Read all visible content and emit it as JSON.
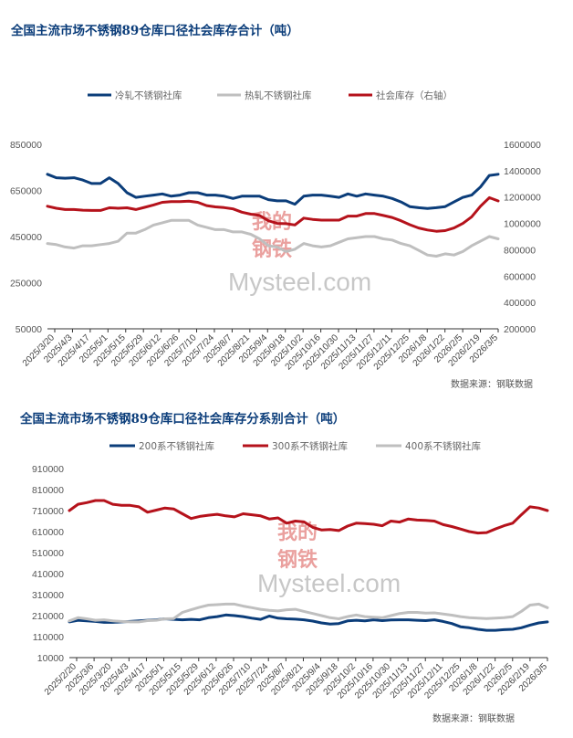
{
  "chart_data": [
    {
      "type": "line",
      "title": "全国主流市场不锈钢89仓库口径社会库存合计（吨）",
      "legend": [
        "冷轧不锈钢社库",
        "热轧不锈钢社库",
        "社会库存（右轴）"
      ],
      "legend_position": "top",
      "source": "数据来源：钢联数据",
      "watermark": "我的钢铁 Mysteel.com",
      "y_left": {
        "range": [
          50000,
          850000
        ],
        "ticks": [
          "850000",
          "650000",
          "450000",
          "250000",
          "50000"
        ]
      },
      "y_right": {
        "range": [
          200000,
          1600000
        ],
        "ticks": [
          "1600000",
          "1400000",
          "1200000",
          "1000000",
          "800000",
          "600000",
          "400000",
          "200000"
        ]
      },
      "x_tick_labels": [
        "2025/3/20",
        "2025/4/3",
        "2025/4/17",
        "2025/5/1",
        "2025/5/15",
        "2025/5/29",
        "2025/6/12",
        "2025/6/26",
        "2025/7/10",
        "2025/7/24",
        "2025/8/7",
        "2025/8/21",
        "2025/9/4",
        "2025/9/18",
        "2025/10/2",
        "2025/10/16",
        "2025/10/30",
        "2025/11/13",
        "2025/11/27",
        "2025/12/11",
        "2025/12/25",
        "2026/1/8",
        "2026/1/22",
        "2026/2/5",
        "2026/2/19",
        "2026/3/5"
      ],
      "series": [
        {
          "name": "冷轧不锈钢社库",
          "axis": "left",
          "color": "#0b3d7a",
          "values": [
            720000,
            705000,
            703000,
            705000,
            695000,
            680000,
            680000,
            705000,
            680000,
            640000,
            620000,
            625000,
            630000,
            635000,
            625000,
            630000,
            640000,
            640000,
            630000,
            630000,
            625000,
            615000,
            625000,
            625000,
            625000,
            610000,
            605000,
            605000,
            590000,
            625000,
            630000,
            630000,
            625000,
            620000,
            635000,
            625000,
            635000,
            630000,
            625000,
            615000,
            600000,
            580000,
            575000,
            572000,
            575000,
            580000,
            600000,
            620000,
            630000,
            665000,
            715000,
            720000
          ]
        },
        {
          "name": "热轧不锈钢社库",
          "axis": "left",
          "color": "#bfbfbf",
          "values": [
            420000,
            415000,
            405000,
            400000,
            410000,
            410000,
            415000,
            420000,
            430000,
            465000,
            465000,
            480000,
            500000,
            510000,
            520000,
            520000,
            520000,
            500000,
            490000,
            480000,
            480000,
            470000,
            470000,
            460000,
            440000,
            410000,
            405000,
            385000,
            395000,
            420000,
            410000,
            405000,
            410000,
            425000,
            440000,
            445000,
            450000,
            450000,
            440000,
            435000,
            420000,
            410000,
            390000,
            370000,
            365000,
            375000,
            370000,
            385000,
            410000,
            430000,
            450000,
            440000
          ]
        },
        {
          "name": "社会库存（右轴）",
          "axis": "right",
          "color": "#b5121b",
          "values": [
            1130000,
            1115000,
            1105000,
            1105000,
            1100000,
            1098000,
            1098000,
            1118000,
            1115000,
            1118000,
            1105000,
            1122000,
            1140000,
            1160000,
            1165000,
            1165000,
            1168000,
            1160000,
            1135000,
            1125000,
            1120000,
            1110000,
            1085000,
            1070000,
            1060000,
            1020000,
            1000000,
            998000,
            988000,
            1040000,
            1030000,
            1025000,
            1025000,
            1025000,
            1055000,
            1055000,
            1075000,
            1075000,
            1060000,
            1045000,
            1020000,
            990000,
            965000,
            950000,
            940000,
            945000,
            965000,
            1000000,
            1050000,
            1130000,
            1195000,
            1170000
          ]
        }
      ]
    },
    {
      "type": "line",
      "title": "全国主流市场不锈钢89仓库口径社会库存分系别合计（吨）",
      "legend": [
        "200系不锈钢社库",
        "300系不锈钢社库",
        "400系不锈钢社库"
      ],
      "legend_position": "top",
      "source": "数据来源：钢联数据",
      "watermark": "我的钢铁 Mysteel.com",
      "y_left": {
        "range": [
          10000,
          910000
        ],
        "ticks": [
          "910000",
          "810000",
          "710000",
          "610000",
          "510000",
          "410000",
          "310000",
          "210000",
          "110000",
          "10000"
        ]
      },
      "x_tick_labels": [
        "2025/2/20",
        "2025/3/6",
        "2025/3/20",
        "2025/4/3",
        "2025/4/17",
        "2025/5/1",
        "2025/5/15",
        "2025/5/29",
        "2025/6/12",
        "2025/6/26",
        "2025/7/10",
        "2025/7/24",
        "2025/8/7",
        "2025/8/21",
        "2025/9/4",
        "2025/9/18",
        "2025/10/2",
        "2025/10/16",
        "2025/10/30",
        "2025/11/13",
        "2025/11/27",
        "2025/12/11",
        "2025/12/25",
        "2026/1/8",
        "2026/1/22",
        "2026/2/5",
        "2026/2/19",
        "2026/3/5"
      ],
      "series": [
        {
          "name": "200系不锈钢社库",
          "color": "#0b3d7a",
          "values": [
            180000,
            188000,
            185000,
            182000,
            178000,
            178000,
            180000,
            182000,
            185000,
            188000,
            190000,
            195000,
            192000,
            190000,
            192000,
            190000,
            200000,
            205000,
            213000,
            210000,
            205000,
            198000,
            192000,
            208000,
            198000,
            195000,
            193000,
            190000,
            184000,
            175000,
            170000,
            172000,
            185000,
            188000,
            185000,
            190000,
            186000,
            189000,
            190000,
            190000,
            188000,
            186000,
            190000,
            182000,
            172000,
            157000,
            152000,
            145000,
            140000,
            140000,
            143000,
            145000,
            152000,
            165000,
            175000,
            180000
          ]
        },
        {
          "name": "300系不锈钢社库",
          "color": "#b5121b",
          "values": [
            710000,
            740000,
            748000,
            758000,
            758000,
            740000,
            735000,
            735000,
            728000,
            702000,
            712000,
            722000,
            718000,
            695000,
            672000,
            682000,
            688000,
            692000,
            685000,
            680000,
            695000,
            690000,
            685000,
            670000,
            675000,
            650000,
            660000,
            656000,
            630000,
            618000,
            620000,
            615000,
            636000,
            650000,
            648000,
            645000,
            638000,
            660000,
            655000,
            670000,
            665000,
            663000,
            660000,
            643000,
            634000,
            622000,
            610000,
            603000,
            605000,
            622000,
            638000,
            650000,
            690000,
            728000,
            722000,
            710000
          ]
        },
        {
          "name": "400系不锈钢社库",
          "color": "#bfbfbf",
          "values": [
            185000,
            200000,
            195000,
            188000,
            190000,
            185000,
            182000,
            180000,
            180000,
            186000,
            188000,
            195000,
            196000,
            225000,
            238000,
            250000,
            260000,
            262000,
            265000,
            265000,
            255000,
            248000,
            240000,
            235000,
            232000,
            238000,
            240000,
            230000,
            220000,
            210000,
            200000,
            195000,
            205000,
            213000,
            205000,
            202000,
            200000,
            210000,
            220000,
            225000,
            225000,
            222000,
            223000,
            218000,
            212000,
            205000,
            200000,
            198000,
            196000,
            198000,
            200000,
            205000,
            230000,
            260000,
            265000,
            248000
          ]
        }
      ]
    }
  ]
}
